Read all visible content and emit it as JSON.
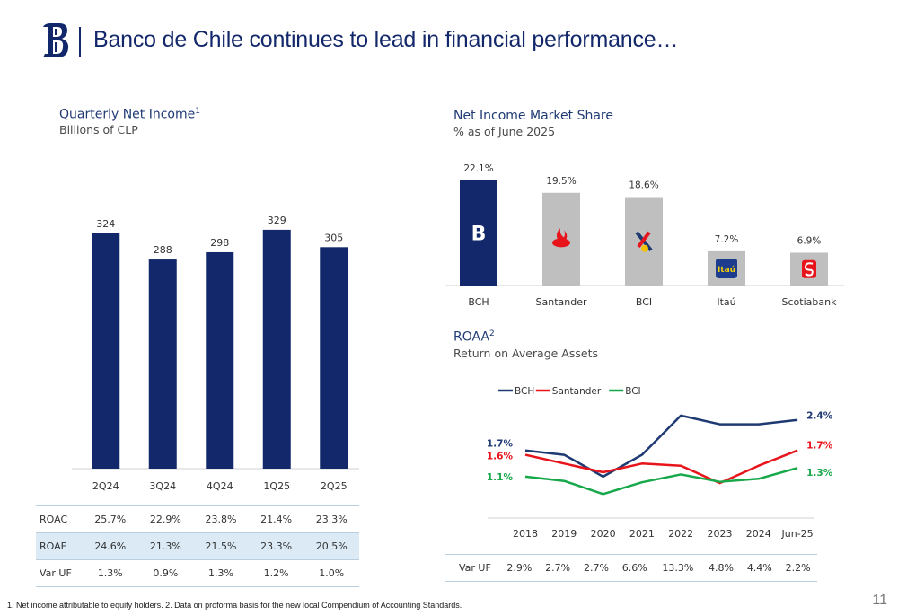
{
  "header": {
    "title": "Banco de Chile continues to lead in financial performance…"
  },
  "net_income": {
    "title": "Quarterly Net Income",
    "title_sup": "1",
    "subtitle": "Billions of CLP"
  },
  "market_share": {
    "title": "Net Income Market Share",
    "subtitle": "% as of June 2025"
  },
  "roaa": {
    "title": "ROAA",
    "title_sup": "2",
    "subtitle": "Return on Average Assets"
  },
  "income_table": {
    "rows": [
      {
        "label": "ROAC",
        "values": [
          "25.7%",
          "22.9%",
          "23.8%",
          "21.4%",
          "23.3%"
        ]
      },
      {
        "label": "ROAE",
        "values": [
          "24.6%",
          "21.3%",
          "21.5%",
          "23.3%",
          "20.5%"
        ]
      },
      {
        "label": "Var UF",
        "values": [
          "1.3%",
          "0.9%",
          "1.3%",
          "1.2%",
          "1.0%"
        ]
      }
    ]
  },
  "roaa_table": {
    "label": "Var UF",
    "values": [
      "2.9%",
      "2.7%",
      "2.7%",
      "6.6%",
      "13.3%",
      "4.8%",
      "4.4%",
      "2.2%"
    ]
  },
  "footnote": "1. Net income attributable to equity holders. 2. Data on proforma basis for the new local Compendium of Accounting Standards.",
  "page_number": "11",
  "chart_data": [
    {
      "type": "bar",
      "categories": [
        "2Q24",
        "3Q24",
        "4Q24",
        "1Q25",
        "2Q25"
      ],
      "values": [
        324,
        288,
        298,
        329,
        305
      ],
      "data_labels": [
        "324",
        "288",
        "298",
        "329",
        "305"
      ],
      "color": "#13286a"
    },
    {
      "type": "bar",
      "categories": [
        "BCH",
        "Santander",
        "BCI",
        "Itaú",
        "Scotiabank"
      ],
      "values": [
        22.1,
        19.5,
        18.6,
        7.2,
        6.9
      ],
      "data_labels": [
        "22.1%",
        "19.5%",
        "18.6%",
        "7.2%",
        "6.9%"
      ],
      "colors": [
        "#13286a",
        "#bfbfbf",
        "#bfbfbf",
        "#bfbfbf",
        "#bfbfbf"
      ],
      "icons": [
        "banco-de-chile-logo-icon",
        "santander-flame-icon",
        "bci-logo-icon",
        "itau-logo-icon",
        "scotiabank-logo-icon"
      ]
    },
    {
      "type": "line",
      "x": [
        "2018",
        "2019",
        "2020",
        "2021",
        "2022",
        "2023",
        "2024",
        "Jun-25"
      ],
      "series": [
        {
          "name": "BCH",
          "color": "#1f3a73",
          "values": [
            1.7,
            1.6,
            1.1,
            1.6,
            2.5,
            2.3,
            2.3,
            2.4
          ]
        },
        {
          "name": "Santander",
          "color": "#e8141c",
          "values": [
            1.6,
            1.4,
            1.2,
            1.4,
            1.35,
            0.95,
            1.35,
            1.7
          ]
        },
        {
          "name": "BCI",
          "color": "#17a84a",
          "values": [
            1.1,
            1.0,
            0.7,
            0.97,
            1.15,
            0.98,
            1.05,
            1.3
          ]
        }
      ],
      "point_labels": {
        "BCH": {
          "first": "1.7%",
          "last": "2.4%"
        },
        "Santander": {
          "first": "1.6%",
          "last": "1.7%"
        },
        "BCI": {
          "first": "1.1%",
          "last": "1.3%"
        }
      },
      "legend": "top"
    }
  ]
}
